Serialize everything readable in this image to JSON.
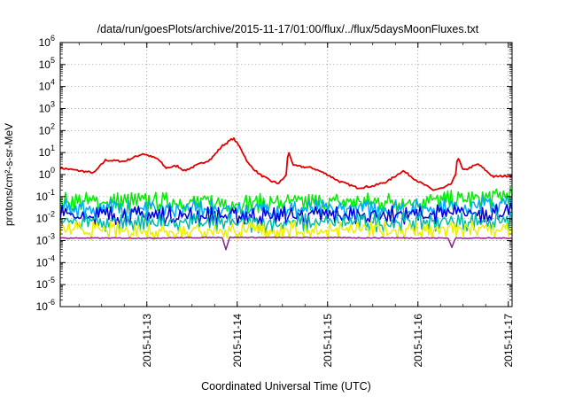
{
  "chart_data": {
    "type": "line",
    "title": "/data/run/goesPlots/archive/2015-11-17/01:00/flux/../flux/5daysMoonFluxes.txt",
    "xlabel": "Coordinated Universal Time (UTC)",
    "ylabel": "protons/cm²-s-sr-MeV",
    "x_range": [
      "2015-11-12 01:00",
      "2015-11-17 01:00"
    ],
    "x_ticks": [
      "2015-11-13",
      "2015-11-14",
      "2015-11-15",
      "2015-11-16",
      "2015-11-17"
    ],
    "y_scale": "log",
    "ylim": [
      1e-06,
      1000000.0
    ],
    "y_ticks": [
      {
        "value": 1e-06,
        "base": "10",
        "exp": "-6"
      },
      {
        "value": 1e-05,
        "base": "10",
        "exp": "-5"
      },
      {
        "value": 0.0001,
        "base": "10",
        "exp": "-4"
      },
      {
        "value": 0.001,
        "base": "10",
        "exp": "-3"
      },
      {
        "value": 0.01,
        "base": "10",
        "exp": "-2"
      },
      {
        "value": 0.1,
        "base": "10",
        "exp": "-1"
      },
      {
        "value": 1,
        "base": "10",
        "exp": "0"
      },
      {
        "value": 10,
        "base": "10",
        "exp": "1"
      },
      {
        "value": 100,
        "base": "10",
        "exp": "2"
      },
      {
        "value": 1000,
        "base": "10",
        "exp": "3"
      },
      {
        "value": 10000,
        "base": "10",
        "exp": "4"
      },
      {
        "value": 100000,
        "base": "10",
        "exp": "5"
      },
      {
        "value": 1000000,
        "base": "10",
        "exp": "6"
      }
    ],
    "grid": true,
    "series": [
      {
        "color": "#e00000",
        "style": "smooth",
        "points": [
          [
            "2015-11-12 01:00",
            2.0
          ],
          [
            "2015-11-12 06:00",
            1.5
          ],
          [
            "2015-11-12 10:00",
            1.2
          ],
          [
            "2015-11-12 13:00",
            4.5
          ],
          [
            "2015-11-12 18:00",
            4.0
          ],
          [
            "2015-11-12 23:00",
            9.0
          ],
          [
            "2015-11-13 03:00",
            5.0
          ],
          [
            "2015-11-13 05:00",
            2.0
          ],
          [
            "2015-11-13 08:00",
            2.5
          ],
          [
            "2015-11-13 10:00",
            1.5
          ],
          [
            "2015-11-13 14:00",
            3.0
          ],
          [
            "2015-11-13 17:00",
            5.0
          ],
          [
            "2015-11-13 20:00",
            20.0
          ],
          [
            "2015-11-13 23:00",
            45.0
          ],
          [
            "2015-11-14 01:00",
            15.0
          ],
          [
            "2015-11-14 03:00",
            3.0
          ],
          [
            "2015-11-14 06:00",
            1.0
          ],
          [
            "2015-11-14 09:00",
            0.5
          ],
          [
            "2015-11-14 11:00",
            0.4
          ],
          [
            "2015-11-14 13:00",
            0.9
          ],
          [
            "2015-11-14 13:30",
            12.0
          ],
          [
            "2015-11-14 15:00",
            2.5
          ],
          [
            "2015-11-14 20:00",
            2.0
          ],
          [
            "2015-11-15 00:00",
            1.0
          ],
          [
            "2015-11-15 03:00",
            0.5
          ],
          [
            "2015-11-15 08:00",
            0.25
          ],
          [
            "2015-11-15 12:00",
            0.3
          ],
          [
            "2015-11-15 16:00",
            0.5
          ],
          [
            "2015-11-15 20:00",
            1.5
          ],
          [
            "2015-11-16 00:00",
            0.5
          ],
          [
            "2015-11-16 04:00",
            0.2
          ],
          [
            "2015-11-16 07:00",
            0.25
          ],
          [
            "2015-11-16 09:00",
            0.4
          ],
          [
            "2015-11-16 10:00",
            1.0
          ],
          [
            "2015-11-16 10:30",
            7.0
          ],
          [
            "2015-11-16 12:00",
            1.5
          ],
          [
            "2015-11-16 16:00",
            3.0
          ],
          [
            "2015-11-16 20:00",
            0.8
          ],
          [
            "2015-11-17 01:00",
            0.9
          ]
        ]
      },
      {
        "color": "#00ee00",
        "style": "noisy",
        "points": [
          [
            "2015-11-12 01:00",
            0.06
          ],
          [
            "2015-11-13 01:00",
            0.06
          ],
          [
            "2015-11-14 01:00",
            0.05
          ],
          [
            "2015-11-15 01:00",
            0.055
          ],
          [
            "2015-11-16 01:00",
            0.06
          ],
          [
            "2015-11-16 16:00",
            0.08
          ],
          [
            "2015-11-17 01:00",
            0.12
          ]
        ]
      },
      {
        "color": "#00aaff",
        "style": "noisy",
        "points": [
          [
            "2015-11-12 01:00",
            0.03
          ],
          [
            "2015-11-13 01:00",
            0.028
          ],
          [
            "2015-11-14 01:00",
            0.025
          ],
          [
            "2015-11-15 01:00",
            0.027
          ],
          [
            "2015-11-16 01:00",
            0.03
          ],
          [
            "2015-11-17 01:00",
            0.05
          ]
        ]
      },
      {
        "color": "#0000dd",
        "style": "noisy",
        "points": [
          [
            "2015-11-12 01:00",
            0.015
          ],
          [
            "2015-11-13 01:00",
            0.014
          ],
          [
            "2015-11-14 01:00",
            0.013
          ],
          [
            "2015-11-15 01:00",
            0.014
          ],
          [
            "2015-11-16 01:00",
            0.015
          ],
          [
            "2015-11-17 01:00",
            0.02
          ]
        ]
      },
      {
        "color": "#00bbaa",
        "style": "noisy",
        "points": [
          [
            "2015-11-12 01:00",
            0.007
          ],
          [
            "2015-11-13 01:00",
            0.007
          ],
          [
            "2015-11-14 01:00",
            0.006
          ],
          [
            "2015-11-15 01:00",
            0.0065
          ],
          [
            "2015-11-16 01:00",
            0.007
          ],
          [
            "2015-11-17 01:00",
            0.008
          ]
        ]
      },
      {
        "color": "#eeee00",
        "style": "noisy",
        "points": [
          [
            "2015-11-12 01:00",
            0.003
          ],
          [
            "2015-11-13 01:00",
            0.0028
          ],
          [
            "2015-11-14 01:00",
            0.0028
          ],
          [
            "2015-11-15 01:00",
            0.003
          ],
          [
            "2015-11-16 01:00",
            0.003
          ],
          [
            "2015-11-17 01:00",
            0.0032
          ]
        ]
      },
      {
        "color": "#882288",
        "style": "flat",
        "points": [
          [
            "2015-11-12 01:00",
            0.0013
          ],
          [
            "2015-11-13 01:00",
            0.0013
          ],
          [
            "2015-11-13 20:00",
            0.0014
          ],
          [
            "2015-11-13 21:00",
            0.0004
          ],
          [
            "2015-11-13 22:00",
            0.0014
          ],
          [
            "2015-11-16 08:00",
            0.0013
          ],
          [
            "2015-11-16 09:00",
            0.0005
          ],
          [
            "2015-11-16 10:00",
            0.0013
          ],
          [
            "2015-11-17 01:00",
            0.0013
          ]
        ]
      }
    ]
  }
}
